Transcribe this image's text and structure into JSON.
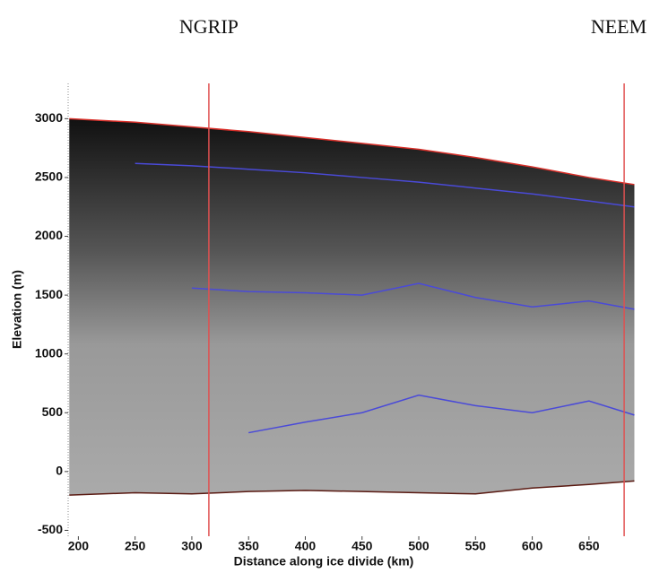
{
  "chart_data": {
    "type": "line",
    "xlabel": "Distance along ice divide (km)",
    "ylabel": "Elevation (m)",
    "x": [
      192,
      250,
      300,
      350,
      400,
      450,
      500,
      550,
      600,
      650,
      690
    ],
    "series": [
      {
        "color": "#d9302a",
        "values": [
          3000,
          2970,
          2930,
          2890,
          2840,
          2790,
          2740,
          2670,
          2590,
          2500,
          2440
        ]
      },
      {
        "color": "#5a1a12",
        "values": [
          -200,
          -180,
          -190,
          -170,
          -160,
          -170,
          -180,
          -190,
          -140,
          -110,
          -80
        ]
      },
      {
        "color": "#4a4ad8",
        "values": [
          null,
          2620,
          2600,
          2570,
          2540,
          2500,
          2460,
          2410,
          2360,
          2300,
          2250
        ]
      },
      {
        "color": "#4a4ad8",
        "values": [
          null,
          null,
          1560,
          1530,
          1520,
          1500,
          1600,
          1480,
          1400,
          1450,
          1380
        ]
      },
      {
        "color": "#4a4ad8",
        "values": [
          null,
          null,
          null,
          330,
          420,
          500,
          650,
          560,
          500,
          600,
          480
        ]
      }
    ],
    "annotations": [
      {
        "text": "NGRIP",
        "x": 315,
        "color": "#e05050"
      },
      {
        "text": "NEEM",
        "x": 681,
        "color": "#e05050"
      }
    ],
    "xlim": [
      191,
      692
    ],
    "ylim": [
      -550,
      3300
    ],
    "xticks": [
      200,
      250,
      300,
      350,
      400,
      450,
      500,
      550,
      600,
      650
    ],
    "yticks": [
      3000,
      2500,
      2000,
      1500,
      1000,
      500,
      0,
      -500
    ]
  }
}
